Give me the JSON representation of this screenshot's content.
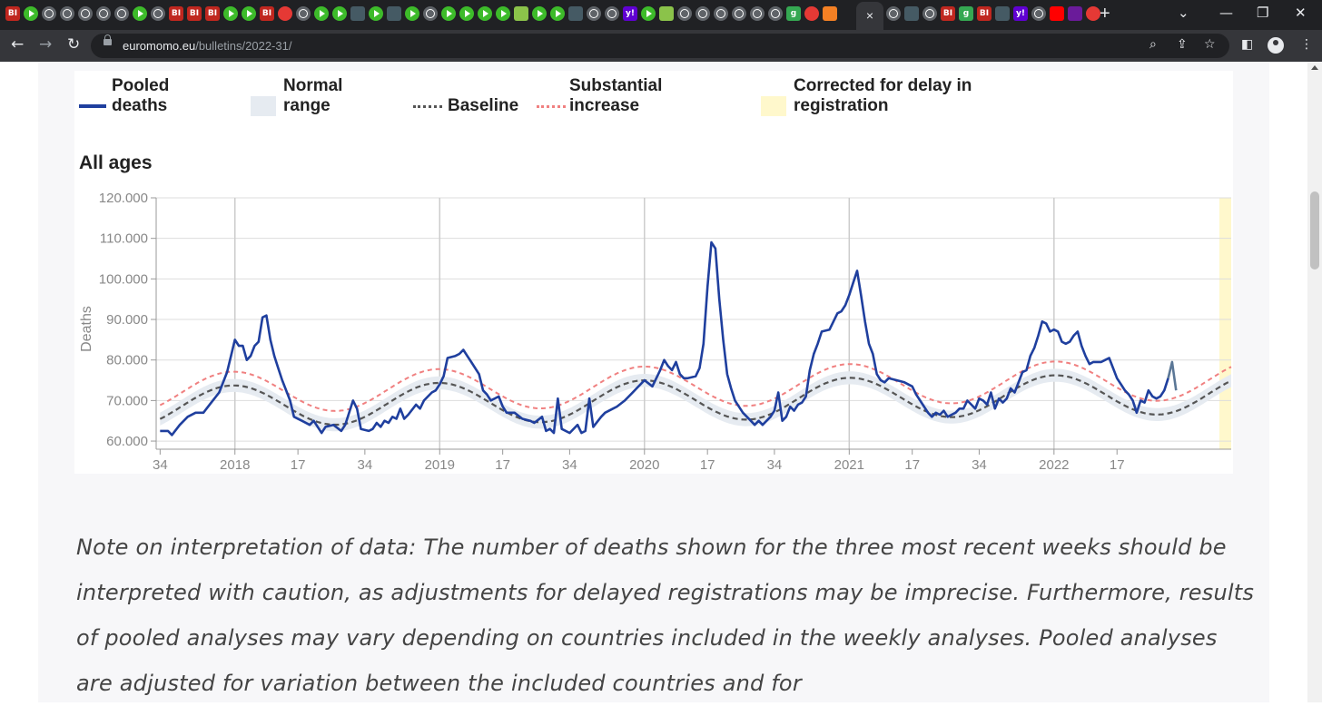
{
  "browser": {
    "tab_favicons": [
      "bi",
      "play",
      "globe",
      "globe",
      "globe",
      "globe",
      "globe",
      "play",
      "globe",
      "bi",
      "bi",
      "bi",
      "play",
      "play",
      "bi",
      "red",
      "globe",
      "play",
      "play",
      "dark",
      "play",
      "dark",
      "play",
      "globe",
      "play",
      "play",
      "play",
      "play",
      "chk",
      "play",
      "play",
      "dark",
      "globe",
      "globe",
      "yahoo",
      "play",
      "chk",
      "globe",
      "globe",
      "globe",
      "globe",
      "globe",
      "globe",
      "g9",
      "red",
      "orange"
    ],
    "tab_favicons_right": [
      "globe",
      "dark",
      "globe",
      "bi",
      "g9",
      "bi",
      "dark",
      "yahoo",
      "globe",
      "youtube",
      "purple",
      "red"
    ],
    "active_tab_close": "×",
    "new_tab": "+",
    "url_host": "euromomo.eu",
    "url_path": "/bulletins/2022-31/",
    "icons": [
      "back-arrow-icon",
      "forward-arrow-icon",
      "reload-icon",
      "lock-icon",
      "zoom-icon",
      "share-icon",
      "star-icon",
      "side-panel-icon",
      "profile-icon",
      "menu-icon"
    ]
  },
  "legend": {
    "pooled": [
      "Pooled",
      "deaths"
    ],
    "normal": [
      "Normal",
      "range"
    ],
    "baseline": "Baseline",
    "substantial": [
      "Substantial",
      "increase"
    ],
    "corrected": [
      "Corrected for delay in",
      "registration"
    ]
  },
  "chart_title": "All ages",
  "chart_data": {
    "type": "line",
    "title": "All ages",
    "ylabel": "Deaths",
    "xlabel": "",
    "ylim": [
      58000,
      120000
    ],
    "y_ticks": [
      "120.000",
      "110.000",
      "100.000",
      "90.000",
      "80.000",
      "70.000",
      "60.000"
    ],
    "y_tick_values": [
      120000,
      110000,
      100000,
      90000,
      80000,
      70000,
      60000
    ],
    "x_ticks": [
      "34",
      "2018",
      "17",
      "34",
      "2019",
      "17",
      "34",
      "2020",
      "17",
      "34",
      "2021",
      "17",
      "34",
      "2022",
      "17"
    ],
    "x_tick_weeks": [
      0,
      19,
      35,
      52,
      71,
      87,
      104,
      123,
      139,
      156,
      175,
      191,
      208,
      227,
      243
    ],
    "x_range_weeks": [
      -1,
      272
    ],
    "yellow_band_weeks": [
      269,
      272
    ],
    "grid": true,
    "series": [
      {
        "name": "Pooled deaths",
        "color": "#1f3f9e",
        "points": [
          [
            0,
            62500
          ],
          [
            2,
            62500
          ],
          [
            3,
            61500
          ],
          [
            5,
            64000
          ],
          [
            7,
            66000
          ],
          [
            9,
            67000
          ],
          [
            11,
            67000
          ],
          [
            13,
            69500
          ],
          [
            15,
            72000
          ],
          [
            17,
            77000
          ],
          [
            19,
            85000
          ],
          [
            20,
            83500
          ],
          [
            21,
            83500
          ],
          [
            22,
            80000
          ],
          [
            23,
            81000
          ],
          [
            24,
            83500
          ],
          [
            25,
            84500
          ],
          [
            26,
            90500
          ],
          [
            27,
            91000
          ],
          [
            28,
            85000
          ],
          [
            29,
            81000
          ],
          [
            30,
            78000
          ],
          [
            31,
            75000
          ],
          [
            33,
            70000
          ],
          [
            34,
            66000
          ],
          [
            36,
            65000
          ],
          [
            38,
            64000
          ],
          [
            39,
            65000
          ],
          [
            41,
            62000
          ],
          [
            42,
            63500
          ],
          [
            44,
            64000
          ],
          [
            46,
            62500
          ],
          [
            47,
            64000
          ],
          [
            49,
            70000
          ],
          [
            50,
            68000
          ],
          [
            51,
            63000
          ],
          [
            53,
            62500
          ],
          [
            54,
            63000
          ],
          [
            55,
            64500
          ],
          [
            56,
            63500
          ],
          [
            57,
            65000
          ],
          [
            58,
            64500
          ],
          [
            59,
            66000
          ],
          [
            60,
            65500
          ],
          [
            61,
            68000
          ],
          [
            62,
            65500
          ],
          [
            63,
            66500
          ],
          [
            65,
            69000
          ],
          [
            66,
            68000
          ],
          [
            67,
            70000
          ],
          [
            69,
            72000
          ],
          [
            70,
            72500
          ],
          [
            71,
            74000
          ],
          [
            72,
            76000
          ],
          [
            73,
            80500
          ],
          [
            75,
            81000
          ],
          [
            76,
            81500
          ],
          [
            77,
            82500
          ],
          [
            78,
            81000
          ],
          [
            79,
            79500
          ],
          [
            81,
            76500
          ],
          [
            82,
            72500
          ],
          [
            83,
            71500
          ],
          [
            84,
            70000
          ],
          [
            86,
            71000
          ],
          [
            87,
            68500
          ],
          [
            88,
            67000
          ],
          [
            90,
            67000
          ],
          [
            92,
            65500
          ],
          [
            94,
            65000
          ],
          [
            95,
            64500
          ],
          [
            97,
            66000
          ],
          [
            98,
            62500
          ],
          [
            99,
            63000
          ],
          [
            100,
            62000
          ],
          [
            101,
            70500
          ],
          [
            102,
            63000
          ],
          [
            104,
            62000
          ],
          [
            106,
            64000
          ],
          [
            107,
            62000
          ],
          [
            108,
            62500
          ],
          [
            109,
            70500
          ],
          [
            110,
            63500
          ],
          [
            112,
            66000
          ],
          [
            113,
            67000
          ],
          [
            115,
            68000
          ],
          [
            116,
            68500
          ],
          [
            118,
            70000
          ],
          [
            120,
            72000
          ],
          [
            121,
            73000
          ],
          [
            123,
            75000
          ],
          [
            125,
            73500
          ],
          [
            127,
            77500
          ],
          [
            128,
            80000
          ],
          [
            129,
            78500
          ],
          [
            130,
            77500
          ],
          [
            131,
            79500
          ],
          [
            132,
            76500
          ],
          [
            133,
            75500
          ],
          [
            134,
            75500
          ],
          [
            136,
            76000
          ],
          [
            137,
            78000
          ],
          [
            138,
            84000
          ],
          [
            139,
            98000
          ],
          [
            140,
            109000
          ],
          [
            141,
            107500
          ],
          [
            142,
            95000
          ],
          [
            143,
            85000
          ],
          [
            144,
            76500
          ],
          [
            145,
            73000
          ],
          [
            146,
            70000
          ],
          [
            148,
            67000
          ],
          [
            150,
            65000
          ],
          [
            151,
            64000
          ],
          [
            152,
            65000
          ],
          [
            153,
            64000
          ],
          [
            155,
            66000
          ],
          [
            156,
            67500
          ],
          [
            157,
            72000
          ],
          [
            158,
            65000
          ],
          [
            159,
            66000
          ],
          [
            160,
            68500
          ],
          [
            161,
            67500
          ],
          [
            162,
            69000
          ],
          [
            163,
            69500
          ],
          [
            164,
            71000
          ],
          [
            165,
            77500
          ],
          [
            166,
            81500
          ],
          [
            167,
            84000
          ],
          [
            168,
            87000
          ],
          [
            170,
            87500
          ],
          [
            172,
            91500
          ],
          [
            173,
            92000
          ],
          [
            174,
            93500
          ],
          [
            175,
            96000
          ],
          [
            176,
            99000
          ],
          [
            177,
            102000
          ],
          [
            178,
            96000
          ],
          [
            179,
            89500
          ],
          [
            180,
            84000
          ],
          [
            181,
            81500
          ],
          [
            182,
            76500
          ],
          [
            183,
            75000
          ],
          [
            184,
            74500
          ],
          [
            185,
            75500
          ],
          [
            187,
            75000
          ],
          [
            189,
            74500
          ],
          [
            191,
            73500
          ],
          [
            192,
            71500
          ],
          [
            193,
            70000
          ],
          [
            195,
            67000
          ],
          [
            196,
            66000
          ],
          [
            197,
            67000
          ],
          [
            198,
            66500
          ],
          [
            199,
            67500
          ],
          [
            200,
            66000
          ],
          [
            201,
            66500
          ],
          [
            202,
            67000
          ],
          [
            203,
            68000
          ],
          [
            204,
            68000
          ],
          [
            205,
            70000
          ],
          [
            206,
            69000
          ],
          [
            207,
            68000
          ],
          [
            208,
            70500
          ],
          [
            209,
            70000
          ],
          [
            210,
            69000
          ],
          [
            211,
            72000
          ],
          [
            212,
            68000
          ],
          [
            213,
            70500
          ],
          [
            214,
            69500
          ],
          [
            215,
            70500
          ],
          [
            216,
            73000
          ],
          [
            217,
            72000
          ],
          [
            218,
            74500
          ],
          [
            219,
            77000
          ],
          [
            220,
            77500
          ],
          [
            221,
            81000
          ],
          [
            222,
            83000
          ],
          [
            223,
            86000
          ],
          [
            224,
            89500
          ],
          [
            225,
            89000
          ],
          [
            226,
            87000
          ],
          [
            227,
            87500
          ],
          [
            228,
            87000
          ],
          [
            229,
            84500
          ],
          [
            230,
            84000
          ],
          [
            231,
            84500
          ],
          [
            232,
            86000
          ],
          [
            233,
            87000
          ],
          [
            234,
            83500
          ],
          [
            235,
            81000
          ],
          [
            236,
            79000
          ],
          [
            237,
            79500
          ],
          [
            238,
            79500
          ],
          [
            239,
            79500
          ],
          [
            240,
            80000
          ],
          [
            241,
            80500
          ],
          [
            242,
            78000
          ],
          [
            243,
            75500
          ],
          [
            244,
            74000
          ],
          [
            245,
            72500
          ],
          [
            246,
            71500
          ],
          [
            247,
            70000
          ],
          [
            248,
            67000
          ],
          [
            249,
            70000
          ],
          [
            250,
            69500
          ],
          [
            251,
            72500
          ],
          [
            252,
            71000
          ],
          [
            253,
            70500
          ],
          [
            254,
            71000
          ],
          [
            255,
            72500
          ],
          [
            256,
            75500
          ]
        ]
      },
      {
        "name": "Corrected for delay in registration",
        "color": "#5b7796",
        "points": [
          [
            256,
            75500
          ],
          [
            257,
            79500
          ],
          [
            258,
            72500
          ]
        ]
      }
    ],
    "baseline_model": {
      "name": "Baseline",
      "color": "#555555",
      "mean": 68500,
      "amplitude": 5000,
      "trend_per_week": 12,
      "period_weeks": 52.18,
      "peak_week": 18.5
    },
    "substantial_model": {
      "name": "Substantial increase",
      "color": "#f08080",
      "offset": 3400
    },
    "normal_range_model": {
      "name": "Normal range",
      "color": "#e6ebf1",
      "half_width": 1600
    }
  },
  "note": "Note on interpretation of data: The number of deaths shown for the three most recent weeks should be interpreted with caution, as adjustments for delayed registrations may be imprecise. Furthermore, results of pooled analyses may vary depending on countries included in the weekly analyses. Pooled analyses are adjusted for variation between the included countries and for"
}
